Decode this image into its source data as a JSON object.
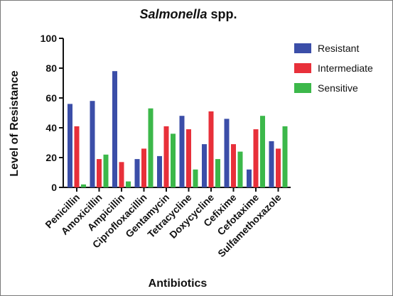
{
  "chart_data": {
    "type": "bar",
    "title_italic": "Salmonella",
    "title_rest": " spp.",
    "xlabel": "Antibiotics",
    "ylabel": "Level of Resistance",
    "ylim": [
      0,
      100
    ],
    "yticks": [
      "0",
      "20",
      "40",
      "60",
      "80",
      "100"
    ],
    "categories": [
      "Penicillin",
      "Amoxicillin",
      "Ampicillin",
      "Ciprofloxacillin",
      "Gentamycin",
      "Tetracycline",
      "Doxycycline",
      "Cefixime",
      "Cefotaxime",
      "Sulfamethoxazole"
    ],
    "series": [
      {
        "name": "Resistant",
        "color": "#3b4ea8",
        "values": [
          56,
          58,
          78,
          19,
          21,
          48,
          29,
          46,
          12,
          31
        ]
      },
      {
        "name": "Intermediate",
        "color": "#e8303a",
        "values": [
          41,
          19,
          17,
          26,
          41,
          39,
          51,
          29,
          39,
          26
        ]
      },
      {
        "name": "Sensitive",
        "color": "#3cb84a",
        "values": [
          2,
          22,
          4,
          53,
          36,
          12,
          19,
          24,
          48,
          41
        ]
      }
    ],
    "legend_position": "right",
    "grid": false
  }
}
